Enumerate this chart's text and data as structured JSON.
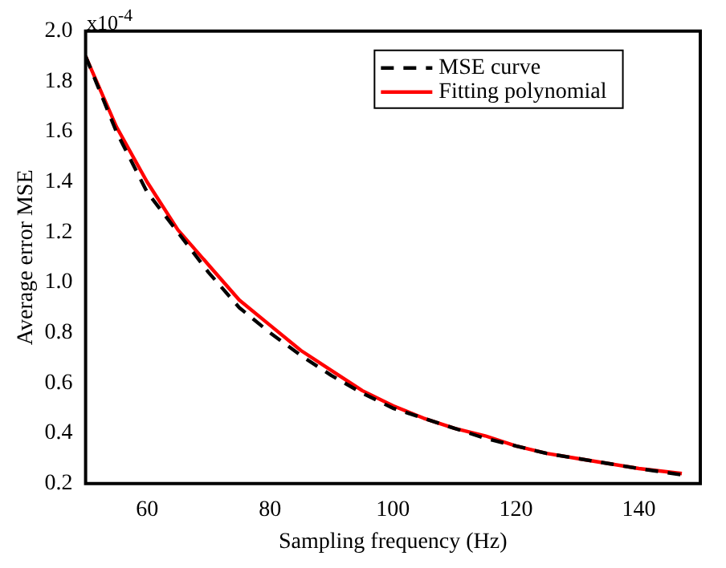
{
  "chart_data": {
    "type": "line",
    "xlabel": "Sampling frequency (Hz)",
    "ylabel": "Average error MSE",
    "annotations": [
      "x10$^{-4}$"
    ],
    "x": [
      50,
      55,
      60,
      65,
      70,
      75,
      80,
      85,
      90,
      95,
      100,
      105,
      110,
      115,
      120,
      125,
      130,
      135,
      140,
      147
    ],
    "series": [
      {
        "name": "MSE curve",
        "color": "#000000",
        "line_style": "dashed",
        "values": [
          1.9,
          1.6,
          1.36,
          1.2,
          1.04,
          0.9,
          0.8,
          0.71,
          0.63,
          0.56,
          0.5,
          0.46,
          0.42,
          0.38,
          0.35,
          0.32,
          0.3,
          0.28,
          0.26,
          0.235
        ]
      },
      {
        "name": "Fitting polynomial",
        "color": "#ff0000",
        "line_style": "solid",
        "values": [
          1.9,
          1.62,
          1.4,
          1.21,
          1.07,
          0.93,
          0.83,
          0.73,
          0.65,
          0.57,
          0.51,
          0.46,
          0.42,
          0.39,
          0.35,
          0.32,
          0.3,
          0.28,
          0.26,
          0.24
        ]
      }
    ],
    "xlim": [
      50,
      150
    ],
    "xticks": [
      60,
      80,
      100,
      120,
      140
    ],
    "ylim": [
      0.2,
      2.0
    ],
    "yticks": [
      0.2,
      0.4,
      0.6,
      0.8,
      {
        "value": 1,
        "label": "1.0"
      },
      1.2,
      1.4,
      1.6,
      1.8,
      {
        "value": 2,
        "label": "2.0"
      }
    ],
    "grid": false,
    "legend": "top right",
    "marker": "none"
  }
}
